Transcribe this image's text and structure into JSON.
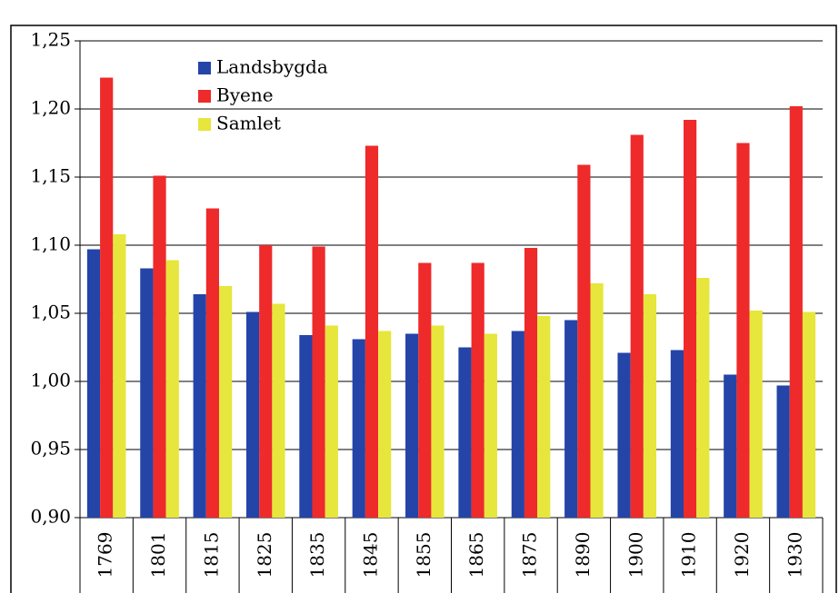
{
  "chart_data": {
    "type": "bar",
    "categories": [
      "1769",
      "1801",
      "1815",
      "1825",
      "1835",
      "1845",
      "1855",
      "1865",
      "1875",
      "1890",
      "1900",
      "1910",
      "1920",
      "1930"
    ],
    "series": [
      {
        "name": "Landsbygda",
        "color": "#2444a8",
        "values": [
          1.097,
          1.083,
          1.064,
          1.051,
          1.034,
          1.031,
          1.035,
          1.025,
          1.037,
          1.045,
          1.021,
          1.023,
          1.005,
          0.997
        ]
      },
      {
        "name": "Byene",
        "color": "#ee2a2a",
        "values": [
          1.223,
          1.151,
          1.127,
          1.1,
          1.099,
          1.173,
          1.087,
          1.087,
          1.098,
          1.159,
          1.181,
          1.192,
          1.175,
          1.202
        ]
      },
      {
        "name": "Samlet",
        "color": "#e6e63c",
        "values": [
          1.108,
          1.089,
          1.07,
          1.057,
          1.041,
          1.037,
          1.041,
          1.035,
          1.048,
          1.072,
          1.064,
          1.076,
          1.052,
          1.051
        ]
      }
    ],
    "ylim": [
      0.9,
      1.25
    ],
    "yticks": [
      {
        "value": 0.9,
        "label": "0,90"
      },
      {
        "value": 0.95,
        "label": "0,95"
      },
      {
        "value": 1.0,
        "label": "1,00"
      },
      {
        "value": 1.05,
        "label": "1,05"
      },
      {
        "value": 1.1,
        "label": "1,10"
      },
      {
        "value": 1.15,
        "label": "1,15"
      },
      {
        "value": 1.2,
        "label": "1,20"
      },
      {
        "value": 1.25,
        "label": "1,25"
      }
    ],
    "grid": true,
    "legend": "upper left"
  }
}
